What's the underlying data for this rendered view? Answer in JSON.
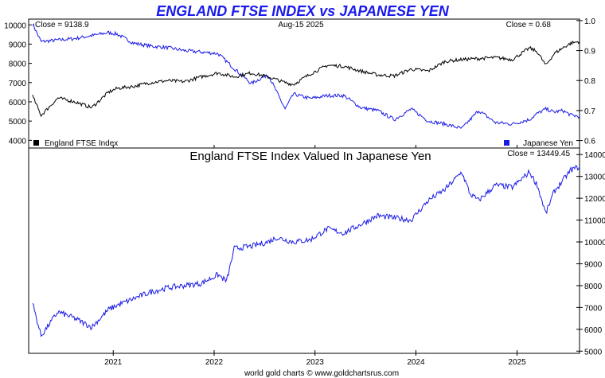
{
  "title": "ENGLAND FTSE INDEX vs JAPANESE YEN",
  "footer": "world gold charts © www.goldchartsrus.com",
  "colors": {
    "title": "#1a1aee",
    "ftse": "#000000",
    "yen": "#1a1ae6",
    "axis": "#000000",
    "background": "#ffffff"
  },
  "chart_data": [
    {
      "type": "line",
      "panel": "top",
      "date_label": "Aug-15  2025",
      "left_close_label": "Close = 9138.9",
      "right_close_label": "Close = 0.68",
      "x_ticks": [
        "2021",
        "2022",
        "2023",
        "2024",
        "2025"
      ],
      "x_range": [
        "2020-03",
        "2025-08-15"
      ],
      "left_axis": {
        "ticks": [
          "10000",
          "9000",
          "8000",
          "7000",
          "6000",
          "5000",
          "4000"
        ],
        "ylim": [
          3600,
          10300
        ]
      },
      "right_axis": {
        "ticks": [
          "1.0",
          "0.9",
          "0.8",
          "0.7",
          "0.6"
        ],
        "ylim": [
          0.575,
          1.005
        ]
      },
      "legend": "bottom",
      "series": [
        {
          "name": "England FTSE Index",
          "axis": "left",
          "x": [
            "2020-03",
            "2020-04",
            "2020-06",
            "2020-08",
            "2020-10",
            "2020-12",
            "2021-01",
            "2021-03",
            "2021-05",
            "2021-07",
            "2021-09",
            "2021-11",
            "2022-01",
            "2022-03",
            "2022-05",
            "2022-07",
            "2022-09",
            "2022-10",
            "2022-12",
            "2023-02",
            "2023-04",
            "2023-06",
            "2023-08",
            "2023-10",
            "2023-12",
            "2024-02",
            "2024-04",
            "2024-06",
            "2024-08",
            "2024-10",
            "2024-12",
            "2025-02",
            "2025-03",
            "2025-04",
            "2025-05",
            "2025-06",
            "2025-07",
            "2025-08"
          ],
          "values": [
            6300,
            5300,
            6200,
            6000,
            5700,
            6500,
            6700,
            6800,
            7000,
            7100,
            7050,
            7300,
            7500,
            7300,
            7500,
            7300,
            7000,
            6900,
            7450,
            7900,
            7850,
            7600,
            7400,
            7350,
            7700,
            7600,
            8100,
            8200,
            8250,
            8300,
            8200,
            8800,
            8600,
            7900,
            8500,
            8800,
            9050,
            9139
          ]
        },
        {
          "name": "Japanese Yen",
          "axis": "right",
          "x": [
            "2020-03",
            "2020-04",
            "2020-06",
            "2020-08",
            "2020-10",
            "2020-12",
            "2021-01",
            "2021-03",
            "2021-05",
            "2021-07",
            "2021-09",
            "2021-11",
            "2022-01",
            "2022-03",
            "2022-05",
            "2022-07",
            "2022-09",
            "2022-10",
            "2022-12",
            "2023-02",
            "2023-04",
            "2023-06",
            "2023-08",
            "2023-10",
            "2023-12",
            "2024-02",
            "2024-04",
            "2024-06",
            "2024-08",
            "2024-10",
            "2024-12",
            "2025-02",
            "2025-03",
            "2025-04",
            "2025-05",
            "2025-06",
            "2025-07",
            "2025-08"
          ],
          "values": [
            0.99,
            0.93,
            0.935,
            0.94,
            0.95,
            0.96,
            0.955,
            0.925,
            0.915,
            0.91,
            0.9,
            0.895,
            0.89,
            0.84,
            0.79,
            0.82,
            0.705,
            0.755,
            0.74,
            0.75,
            0.75,
            0.71,
            0.7,
            0.67,
            0.705,
            0.665,
            0.655,
            0.64,
            0.7,
            0.66,
            0.655,
            0.67,
            0.69,
            0.705,
            0.695,
            0.7,
            0.685,
            0.68
          ]
        }
      ]
    },
    {
      "type": "line",
      "panel": "bottom",
      "title": "England FTSE Index Valued In Japanese Yen",
      "close_label": "Close = 13449.45",
      "x_ticks": [
        "2021",
        "2022",
        "2023",
        "2024",
        "2025"
      ],
      "right_axis": {
        "ticks": [
          "14000",
          "13000",
          "12000",
          "11000",
          "10000",
          "9000",
          "8000",
          "7000",
          "6000",
          "5000"
        ],
        "ylim": [
          4900,
          14300
        ]
      },
      "series": [
        {
          "name": "England FTSE Index Valued In Japanese Yen",
          "x": [
            "2020-03",
            "2020-04",
            "2020-06",
            "2020-08",
            "2020-10",
            "2020-12",
            "2021-01",
            "2021-03",
            "2021-05",
            "2021-07",
            "2021-09",
            "2021-11",
            "2022-01",
            "2022-02",
            "2022-03",
            "2022-05",
            "2022-07",
            "2022-08",
            "2022-10",
            "2022-12",
            "2023-02",
            "2023-04",
            "2023-06",
            "2023-08",
            "2023-10",
            "2023-12",
            "2024-02",
            "2024-04",
            "2024-06",
            "2024-07",
            "2024-08",
            "2024-10",
            "2024-12",
            "2025-02",
            "2025-03",
            "2025-04",
            "2025-05",
            "2025-06",
            "2025-07",
            "2025-08"
          ],
          "values": [
            7200,
            5700,
            6800,
            6500,
            6100,
            6900,
            7100,
            7400,
            7700,
            7900,
            8000,
            8100,
            8500,
            8200,
            9700,
            9800,
            10000,
            10200,
            10000,
            10100,
            10600,
            10400,
            10800,
            11200,
            11100,
            11000,
            11900,
            12400,
            13200,
            12200,
            11900,
            12600,
            12500,
            13200,
            12600,
            11300,
            12300,
            12800,
            13300,
            13449
          ]
        }
      ]
    }
  ]
}
